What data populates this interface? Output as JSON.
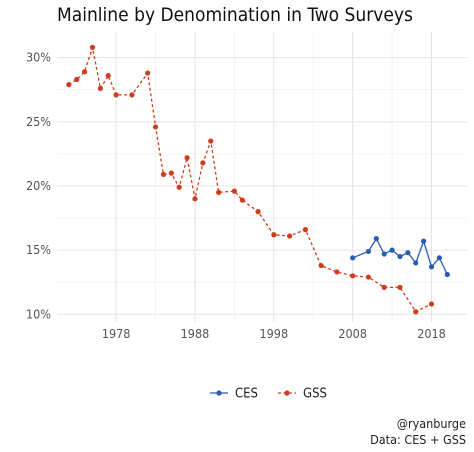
{
  "chart_data": {
    "type": "line",
    "title": "Mainline by Denomination in Two Surveys",
    "xlabel": "",
    "ylabel": "",
    "xlim": [
      1970.5,
      2022.5
    ],
    "ylim": [
      9.4,
      32
    ],
    "x_ticks": [
      1978,
      1988,
      1998,
      2008,
      2018
    ],
    "x_tick_labels": [
      "1978",
      "1988",
      "1998",
      "2008",
      "2018"
    ],
    "y_ticks": [
      10,
      15,
      20,
      25,
      30
    ],
    "y_tick_labels": [
      "10%",
      "15%",
      "20%",
      "25%",
      "30%"
    ],
    "grid": true,
    "legend_position": "bottom",
    "series": [
      {
        "name": "CES",
        "color": "#2a5db0",
        "line_style": "solid",
        "x": [
          2008,
          2010,
          2011,
          2012,
          2013,
          2014,
          2015,
          2016,
          2017,
          2018,
          2019,
          2020
        ],
        "y": [
          14.4,
          14.9,
          15.9,
          14.7,
          15.0,
          14.5,
          14.8,
          14.0,
          15.7,
          13.7,
          14.4,
          13.1
        ]
      },
      {
        "name": "GSS",
        "color": "#d03c1c",
        "line_style": "dashed",
        "x": [
          1972,
          1973,
          1974,
          1975,
          1976,
          1977,
          1978,
          1980,
          1982,
          1983,
          1984,
          1985,
          1986,
          1987,
          1988,
          1989,
          1990,
          1991,
          1993,
          1994,
          1996,
          1998,
          2000,
          2002,
          2004,
          2006,
          2008,
          2010,
          2012,
          2014,
          2016,
          2018
        ],
        "y": [
          27.9,
          28.3,
          28.9,
          30.8,
          27.6,
          28.6,
          27.1,
          27.1,
          28.8,
          24.6,
          20.9,
          21.0,
          19.9,
          22.2,
          19.0,
          21.8,
          23.5,
          19.5,
          19.6,
          18.9,
          18.0,
          16.2,
          16.1,
          16.6,
          13.8,
          13.3,
          13.0,
          12.9,
          12.1,
          12.1,
          10.2,
          10.8
        ]
      }
    ]
  },
  "caption": {
    "handle": "@ryanburge",
    "source": "Data: CES + GSS"
  }
}
